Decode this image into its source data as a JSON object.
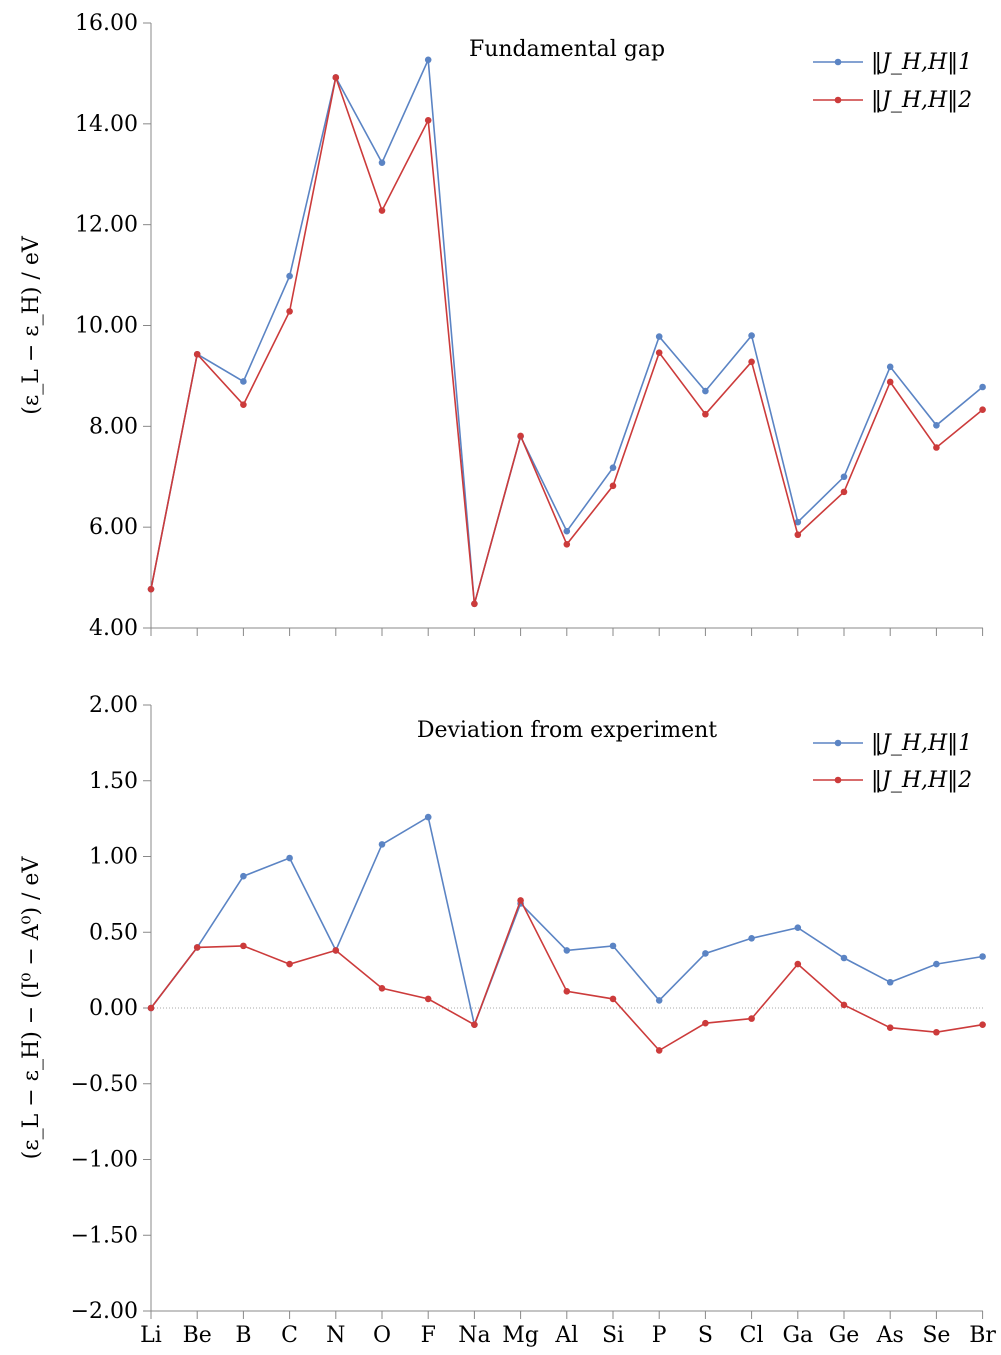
{
  "chart_data": [
    {
      "type": "line",
      "title": "Fundamental gap",
      "ylabel": "(ε_L − ε_H) / eV",
      "ylim": [
        4.0,
        16.0
      ],
      "yticks": [
        "4.00",
        "6.00",
        "8.00",
        "10.00",
        "12.00",
        "14.00",
        "16.00"
      ],
      "grid": false,
      "legend_position": "top-right",
      "categories": [
        "Li",
        "Be",
        "B",
        "C",
        "N",
        "O",
        "F",
        "Na",
        "Mg",
        "Al",
        "Si",
        "P",
        "S",
        "Cl",
        "Ga",
        "Ge",
        "As",
        "Se",
        "Br"
      ],
      "series": [
        {
          "name": "‖J_H,H‖1",
          "color": "#5b84c4",
          "values": [
            4.77,
            9.43,
            8.89,
            10.98,
            14.92,
            13.23,
            15.27,
            4.48,
            7.8,
            5.92,
            7.18,
            9.78,
            8.7,
            9.8,
            6.1,
            7.0,
            9.18,
            8.02,
            8.78
          ]
        },
        {
          "name": "‖J_H,H‖2",
          "color": "#cc3b3b",
          "values": [
            4.77,
            9.43,
            8.43,
            10.28,
            14.92,
            12.28,
            14.07,
            4.48,
            7.81,
            5.66,
            6.82,
            9.46,
            8.24,
            9.28,
            5.85,
            6.7,
            8.88,
            7.58,
            8.33
          ]
        }
      ]
    },
    {
      "type": "line",
      "title": "Deviation from experiment",
      "ylabel": "(ε_L − ε_H) − (I⁰ − A⁰) / eV",
      "ylim": [
        -2.0,
        2.0
      ],
      "yticks": [
        "−2.00",
        "−1.50",
        "−1.00",
        "−0.50",
        "0.00",
        "0.50",
        "1.00",
        "1.50",
        "2.00"
      ],
      "grid": false,
      "zero_line": true,
      "legend_position": "top-right",
      "categories": [
        "Li",
        "Be",
        "B",
        "C",
        "N",
        "O",
        "F",
        "Na",
        "Mg",
        "Al",
        "Si",
        "P",
        "S",
        "Cl",
        "Ga",
        "Ge",
        "As",
        "Se",
        "Br"
      ],
      "series": [
        {
          "name": "‖J_H,H‖1",
          "color": "#5b84c4",
          "values": [
            0.0,
            0.4,
            0.87,
            0.99,
            0.38,
            1.08,
            1.26,
            -0.11,
            0.69,
            0.38,
            0.41,
            0.05,
            0.36,
            0.46,
            0.53,
            0.33,
            0.17,
            0.29,
            0.34
          ]
        },
        {
          "name": "‖J_H,H‖2",
          "color": "#cc3b3b",
          "values": [
            0.0,
            0.4,
            0.41,
            0.29,
            0.38,
            0.13,
            0.06,
            -0.11,
            0.71,
            0.11,
            0.06,
            -0.28,
            -0.1,
            -0.07,
            0.29,
            0.02,
            -0.13,
            -0.16,
            -0.11
          ]
        }
      ]
    }
  ]
}
